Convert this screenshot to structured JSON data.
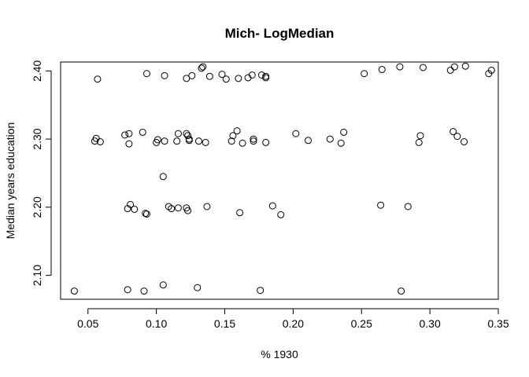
{
  "chart_data": {
    "type": "scatter",
    "title": "Mich- LogMedian",
    "xlabel": "% 1930",
    "ylabel": "Median years education",
    "xlim": [
      0.03,
      0.35
    ],
    "ylim": [
      2.065,
      2.413
    ],
    "x_ticks": [
      0.05,
      0.1,
      0.15,
      0.2,
      0.25,
      0.3,
      0.35
    ],
    "x_tick_labels": [
      "0.05",
      "0.10",
      "0.15",
      "0.20",
      "0.25",
      "0.30",
      "0.35"
    ],
    "y_ticks": [
      2.1,
      2.2,
      2.3,
      2.4
    ],
    "y_tick_labels": [
      "2.10",
      "2.20",
      "2.30",
      "2.40"
    ],
    "marker": "open-circle",
    "grid": false,
    "points": [
      {
        "x": 0.04,
        "y": 2.077
      },
      {
        "x": 0.079,
        "y": 2.079
      },
      {
        "x": 0.091,
        "y": 2.077
      },
      {
        "x": 0.105,
        "y": 2.086
      },
      {
        "x": 0.13,
        "y": 2.082
      },
      {
        "x": 0.176,
        "y": 2.078
      },
      {
        "x": 0.279,
        "y": 2.077
      },
      {
        "x": 0.079,
        "y": 2.198
      },
      {
        "x": 0.081,
        "y": 2.204
      },
      {
        "x": 0.084,
        "y": 2.197
      },
      {
        "x": 0.092,
        "y": 2.191
      },
      {
        "x": 0.093,
        "y": 2.19
      },
      {
        "x": 0.105,
        "y": 2.245
      },
      {
        "x": 0.109,
        "y": 2.201
      },
      {
        "x": 0.111,
        "y": 2.198
      },
      {
        "x": 0.116,
        "y": 2.199
      },
      {
        "x": 0.122,
        "y": 2.199
      },
      {
        "x": 0.123,
        "y": 2.195
      },
      {
        "x": 0.137,
        "y": 2.201
      },
      {
        "x": 0.161,
        "y": 2.192
      },
      {
        "x": 0.185,
        "y": 2.202
      },
      {
        "x": 0.191,
        "y": 2.189
      },
      {
        "x": 0.264,
        "y": 2.203
      },
      {
        "x": 0.284,
        "y": 2.201
      },
      {
        "x": 0.055,
        "y": 2.297
      },
      {
        "x": 0.056,
        "y": 2.301
      },
      {
        "x": 0.059,
        "y": 2.296
      },
      {
        "x": 0.077,
        "y": 2.306
      },
      {
        "x": 0.08,
        "y": 2.308
      },
      {
        "x": 0.08,
        "y": 2.293
      },
      {
        "x": 0.09,
        "y": 2.31
      },
      {
        "x": 0.1,
        "y": 2.295
      },
      {
        "x": 0.101,
        "y": 2.299
      },
      {
        "x": 0.106,
        "y": 2.297
      },
      {
        "x": 0.115,
        "y": 2.297
      },
      {
        "x": 0.116,
        "y": 2.308
      },
      {
        "x": 0.122,
        "y": 2.308
      },
      {
        "x": 0.123,
        "y": 2.305
      },
      {
        "x": 0.124,
        "y": 2.3
      },
      {
        "x": 0.124,
        "y": 2.298
      },
      {
        "x": 0.131,
        "y": 2.297
      },
      {
        "x": 0.136,
        "y": 2.295
      },
      {
        "x": 0.155,
        "y": 2.297
      },
      {
        "x": 0.156,
        "y": 2.305
      },
      {
        "x": 0.159,
        "y": 2.312
      },
      {
        "x": 0.163,
        "y": 2.294
      },
      {
        "x": 0.171,
        "y": 2.3
      },
      {
        "x": 0.171,
        "y": 2.297
      },
      {
        "x": 0.18,
        "y": 2.295
      },
      {
        "x": 0.202,
        "y": 2.308
      },
      {
        "x": 0.211,
        "y": 2.298
      },
      {
        "x": 0.227,
        "y": 2.3
      },
      {
        "x": 0.235,
        "y": 2.294
      },
      {
        "x": 0.237,
        "y": 2.31
      },
      {
        "x": 0.292,
        "y": 2.295
      },
      {
        "x": 0.293,
        "y": 2.305
      },
      {
        "x": 0.317,
        "y": 2.311
      },
      {
        "x": 0.32,
        "y": 2.304
      },
      {
        "x": 0.325,
        "y": 2.296
      },
      {
        "x": 0.057,
        "y": 2.388
      },
      {
        "x": 0.093,
        "y": 2.396
      },
      {
        "x": 0.106,
        "y": 2.393
      },
      {
        "x": 0.122,
        "y": 2.389
      },
      {
        "x": 0.126,
        "y": 2.393
      },
      {
        "x": 0.133,
        "y": 2.404
      },
      {
        "x": 0.134,
        "y": 2.406
      },
      {
        "x": 0.139,
        "y": 2.392
      },
      {
        "x": 0.148,
        "y": 2.395
      },
      {
        "x": 0.151,
        "y": 2.388
      },
      {
        "x": 0.16,
        "y": 2.389
      },
      {
        "x": 0.167,
        "y": 2.39
      },
      {
        "x": 0.17,
        "y": 2.394
      },
      {
        "x": 0.177,
        "y": 2.394
      },
      {
        "x": 0.18,
        "y": 2.39
      },
      {
        "x": 0.18,
        "y": 2.392
      },
      {
        "x": 0.252,
        "y": 2.396
      },
      {
        "x": 0.265,
        "y": 2.402
      },
      {
        "x": 0.278,
        "y": 2.406
      },
      {
        "x": 0.295,
        "y": 2.405
      },
      {
        "x": 0.315,
        "y": 2.401
      },
      {
        "x": 0.318,
        "y": 2.406
      },
      {
        "x": 0.326,
        "y": 2.407
      },
      {
        "x": 0.343,
        "y": 2.396
      },
      {
        "x": 0.345,
        "y": 2.401
      }
    ]
  }
}
